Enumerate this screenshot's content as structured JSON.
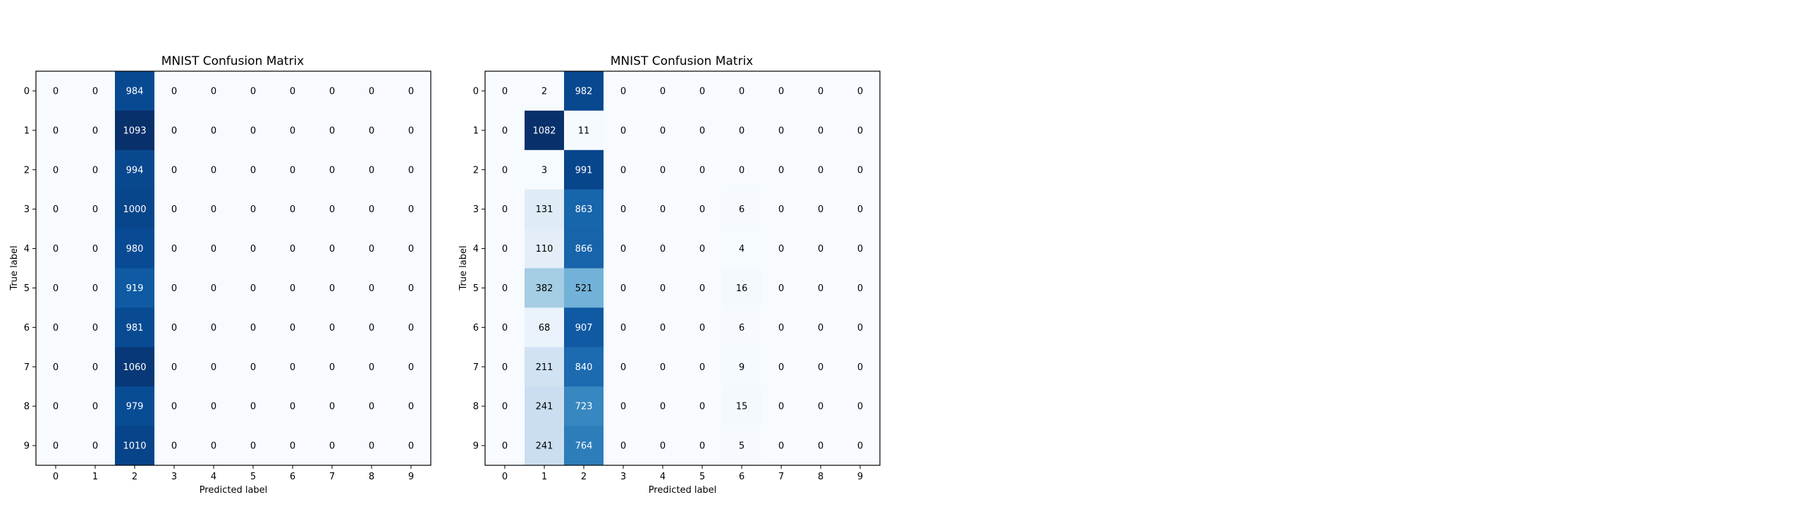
{
  "figure": {
    "background": "#ffffff"
  },
  "chart_data": [
    {
      "type": "heatmap",
      "title": "MNIST Confusion Matrix",
      "xlabel": "Predicted label",
      "ylabel": "True label",
      "x_categories": [
        "0",
        "1",
        "2",
        "3",
        "4",
        "5",
        "6",
        "7",
        "8",
        "9"
      ],
      "y_categories": [
        "0",
        "1",
        "2",
        "3",
        "4",
        "5",
        "6",
        "7",
        "8",
        "9"
      ],
      "colormap": "Blues",
      "colormap_stops": [
        "#f7fbff",
        "#deebf7",
        "#c6dbef",
        "#9ecae1",
        "#6baed6",
        "#4292c6",
        "#2171b5",
        "#08519c",
        "#08306b"
      ],
      "text_color_light": "#ffffff",
      "text_color_dark": "#000000",
      "matrix": [
        [
          0,
          0,
          984,
          0,
          0,
          0,
          0,
          0,
          0,
          0
        ],
        [
          0,
          0,
          1093,
          0,
          0,
          0,
          0,
          0,
          0,
          0
        ],
        [
          0,
          0,
          994,
          0,
          0,
          0,
          0,
          0,
          0,
          0
        ],
        [
          0,
          0,
          1000,
          0,
          0,
          0,
          0,
          0,
          0,
          0
        ],
        [
          0,
          0,
          980,
          0,
          0,
          0,
          0,
          0,
          0,
          0
        ],
        [
          0,
          0,
          919,
          0,
          0,
          0,
          0,
          0,
          0,
          0
        ],
        [
          0,
          0,
          981,
          0,
          0,
          0,
          0,
          0,
          0,
          0
        ],
        [
          0,
          0,
          1060,
          0,
          0,
          0,
          0,
          0,
          0,
          0
        ],
        [
          0,
          0,
          979,
          0,
          0,
          0,
          0,
          0,
          0,
          0
        ],
        [
          0,
          0,
          1010,
          0,
          0,
          0,
          0,
          0,
          0,
          0
        ]
      ],
      "grid": false
    },
    {
      "type": "heatmap",
      "title": "MNIST Confusion Matrix",
      "xlabel": "Predicted label",
      "ylabel": "True label",
      "x_categories": [
        "0",
        "1",
        "2",
        "3",
        "4",
        "5",
        "6",
        "7",
        "8",
        "9"
      ],
      "y_categories": [
        "0",
        "1",
        "2",
        "3",
        "4",
        "5",
        "6",
        "7",
        "8",
        "9"
      ],
      "colormap": "Blues",
      "colormap_stops": [
        "#f7fbff",
        "#deebf7",
        "#c6dbef",
        "#9ecae1",
        "#6baed6",
        "#4292c6",
        "#2171b5",
        "#08519c",
        "#08306b"
      ],
      "text_color_light": "#ffffff",
      "text_color_dark": "#000000",
      "matrix": [
        [
          0,
          2,
          982,
          0,
          0,
          0,
          0,
          0,
          0,
          0
        ],
        [
          0,
          1082,
          11,
          0,
          0,
          0,
          0,
          0,
          0,
          0
        ],
        [
          0,
          3,
          991,
          0,
          0,
          0,
          0,
          0,
          0,
          0
        ],
        [
          0,
          131,
          863,
          0,
          0,
          0,
          6,
          0,
          0,
          0
        ],
        [
          0,
          110,
          866,
          0,
          0,
          0,
          4,
          0,
          0,
          0
        ],
        [
          0,
          382,
          521,
          0,
          0,
          0,
          16,
          0,
          0,
          0
        ],
        [
          0,
          68,
          907,
          0,
          0,
          0,
          6,
          0,
          0,
          0
        ],
        [
          0,
          211,
          840,
          0,
          0,
          0,
          9,
          0,
          0,
          0
        ],
        [
          0,
          241,
          723,
          0,
          0,
          0,
          15,
          0,
          0,
          0
        ],
        [
          0,
          241,
          764,
          0,
          0,
          0,
          5,
          0,
          0,
          0
        ]
      ],
      "grid": false
    }
  ]
}
